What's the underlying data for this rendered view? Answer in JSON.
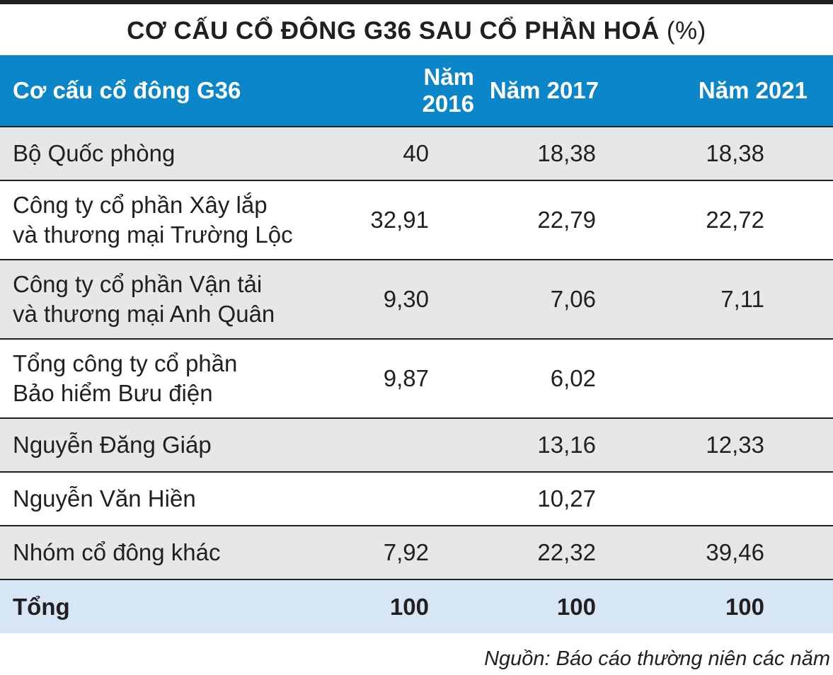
{
  "title": {
    "main": "CƠ CẤU CỔ ĐÔNG G36 SAU CỔ PHẦN HOÁ",
    "unit": "(%)"
  },
  "table": {
    "headers": [
      "Cơ cấu cổ đông G36",
      "Năm 2016",
      "Năm 2017",
      "Năm 2021"
    ],
    "rows": [
      {
        "name_line1": "Bộ Quốc phòng",
        "name_line2": "",
        "v2016": "40",
        "v2017": "18,38",
        "v2021": "18,38"
      },
      {
        "name_line1": "Công ty cổ phần Xây lắp",
        "name_line2": "và thương mại Trường Lộc",
        "v2016": "32,91",
        "v2017": "22,79",
        "v2021": "22,72"
      },
      {
        "name_line1": "Công ty cổ phần Vận tải",
        "name_line2": "và thương mại Anh Quân",
        "v2016": "9,30",
        "v2017": "7,06",
        "v2021": "7,11"
      },
      {
        "name_line1": "Tổng công ty cổ phần",
        "name_line2": "Bảo hiểm Bưu điện",
        "v2016": "9,87",
        "v2017": "6,02",
        "v2021": ""
      },
      {
        "name_line1": "Nguyễn Đăng Giáp",
        "name_line2": "",
        "v2016": "",
        "v2017": "13,16",
        "v2021": "12,33"
      },
      {
        "name_line1": "Nguyễn Văn Hiền",
        "name_line2": "",
        "v2016": "",
        "v2017": "10,27",
        "v2021": ""
      },
      {
        "name_line1": "Nhóm cổ đông khác",
        "name_line2": "",
        "v2016": "7,92",
        "v2017": "22,32",
        "v2021": "39,46"
      }
    ],
    "total": {
      "name": "Tổng",
      "v2016": "100",
      "v2017": "100",
      "v2021": "100"
    }
  },
  "source": "Nguồn: Báo cáo thường niên các năm",
  "colors": {
    "header_bg": "#0a86c9",
    "row_gray": "#e6e7e8",
    "total_bg": "#d6e6f4",
    "text": "#231f20"
  }
}
